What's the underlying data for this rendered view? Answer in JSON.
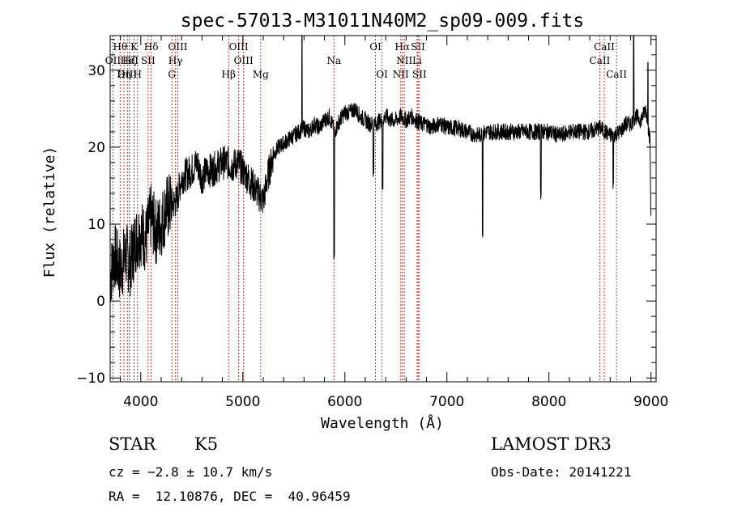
{
  "chart_data": {
    "type": "line",
    "title": "spec-57013-M31011N40M2_sp09-009.fits",
    "xlabel": "Wavelength (Å)",
    "ylabel": "Flux (relative)",
    "xlim": [
      3700,
      9050
    ],
    "ylim": [
      -10.5,
      34.5
    ],
    "xticks": [
      4000,
      5000,
      6000,
      7000,
      8000,
      9000
    ],
    "xtick_labels": [
      "4000",
      "5000",
      "6000",
      "7000",
      "8000",
      "9000"
    ],
    "yticks": [
      -10,
      0,
      10,
      20,
      30
    ],
    "ytick_labels": [
      "−10",
      "0",
      "10",
      "20",
      "30"
    ],
    "spectrum_anchor_points": [
      [
        3700,
        3
      ],
      [
        3740,
        6
      ],
      [
        3800,
        4
      ],
      [
        3850,
        6
      ],
      [
        3900,
        5
      ],
      [
        3950,
        8
      ],
      [
        4000,
        9
      ],
      [
        4050,
        8
      ],
      [
        4100,
        11
      ],
      [
        4150,
        9
      ],
      [
        4200,
        10
      ],
      [
        4250,
        12
      ],
      [
        4300,
        12.5
      ],
      [
        4350,
        13
      ],
      [
        4400,
        16
      ],
      [
        4450,
        16.5
      ],
      [
        4500,
        17
      ],
      [
        4550,
        18
      ],
      [
        4600,
        16
      ],
      [
        4650,
        17
      ],
      [
        4700,
        17
      ],
      [
        4750,
        17.5
      ],
      [
        4800,
        18
      ],
      [
        4850,
        18
      ],
      [
        4900,
        17.5
      ],
      [
        4950,
        18
      ],
      [
        5000,
        17
      ],
      [
        5050,
        16
      ],
      [
        5100,
        15
      ],
      [
        5150,
        14
      ],
      [
        5200,
        13
      ],
      [
        5250,
        16.5
      ],
      [
        5300,
        19
      ],
      [
        5350,
        20
      ],
      [
        5400,
        20.5
      ],
      [
        5450,
        21
      ],
      [
        5500,
        21.5
      ],
      [
        5550,
        22
      ],
      [
        5600,
        22.5
      ],
      [
        5650,
        22
      ],
      [
        5700,
        23
      ],
      [
        5750,
        22.5
      ],
      [
        5800,
        23.5
      ],
      [
        5850,
        24
      ],
      [
        5900,
        22
      ],
      [
        5950,
        23.5
      ],
      [
        6000,
        24.5
      ],
      [
        6050,
        24.5
      ],
      [
        6100,
        25
      ],
      [
        6150,
        24
      ],
      [
        6200,
        23.5
      ],
      [
        6250,
        23
      ],
      [
        6300,
        23
      ],
      [
        6350,
        23.5
      ],
      [
        6400,
        24
      ],
      [
        6450,
        23.5
      ],
      [
        6500,
        23.5
      ],
      [
        6550,
        24
      ],
      [
        6600,
        23.5
      ],
      [
        6650,
        24
      ],
      [
        6700,
        23.5
      ],
      [
        6750,
        23
      ],
      [
        6800,
        23
      ],
      [
        6850,
        22.5
      ],
      [
        6900,
        23
      ],
      [
        6950,
        23
      ],
      [
        7000,
        22.5
      ],
      [
        7100,
        22.5
      ],
      [
        7200,
        22
      ],
      [
        7300,
        21.5
      ],
      [
        7400,
        22
      ],
      [
        7500,
        22
      ],
      [
        7600,
        22
      ],
      [
        7700,
        22
      ],
      [
        7800,
        22
      ],
      [
        7900,
        22
      ],
      [
        8000,
        22
      ],
      [
        8100,
        21.5
      ],
      [
        8200,
        22
      ],
      [
        8300,
        22
      ],
      [
        8400,
        22
      ],
      [
        8500,
        22.5
      ],
      [
        8600,
        21.5
      ],
      [
        8700,
        22
      ],
      [
        8750,
        23
      ],
      [
        8800,
        23
      ],
      [
        8850,
        24
      ],
      [
        8900,
        23.5
      ],
      [
        8950,
        25
      ],
      [
        8990,
        21
      ],
      [
        9000,
        10
      ]
    ],
    "absorption_features": [
      [
        5895,
        5
      ],
      [
        6280,
        16
      ],
      [
        6370,
        14
      ],
      [
        7350,
        8
      ],
      [
        7920,
        13
      ],
      [
        8630,
        14
      ]
    ],
    "emission_features": [
      [
        5580,
        34.5
      ],
      [
        8830,
        34.5
      ],
      [
        8970,
        31
      ]
    ],
    "spectral_lines": [
      {
        "label": "Hθ",
        "wavelength": 3798,
        "row": 1
      },
      {
        "label": "K",
        "wavelength": 3934,
        "row": 1
      },
      {
        "label": "Hδ",
        "wavelength": 4102,
        "row": 1
      },
      {
        "label": "OIII",
        "wavelength": 4363,
        "row": 1
      },
      {
        "label": "OIII",
        "wavelength": 4959,
        "row": 1
      },
      {
        "label": "OI",
        "wavelength": 6300,
        "row": 1
      },
      {
        "label": "Hα",
        "wavelength": 6563,
        "row": 1
      },
      {
        "label": "SII",
        "wavelength": 6717,
        "row": 1
      },
      {
        "label": "CaII",
        "wavelength": 8542,
        "row": 1
      },
      {
        "label": "OII",
        "wavelength": 3727,
        "row": 2
      },
      {
        "label": "Hζ",
        "wavelength": 3889,
        "row": 2
      },
      {
        "label": "HeI",
        "wavelength": 3889,
        "row": 2
      },
      {
        "label": "SII",
        "wavelength": 4072,
        "row": 2
      },
      {
        "label": "Hγ",
        "wavelength": 4340,
        "row": 2
      },
      {
        "label": "OIII",
        "wavelength": 5007,
        "row": 2
      },
      {
        "label": "Na",
        "wavelength": 5893,
        "row": 2
      },
      {
        "label": "NII",
        "wavelength": 6583,
        "row": 2
      },
      {
        "label": "Li",
        "wavelength": 6708,
        "row": 2
      },
      {
        "label": "CaII",
        "wavelength": 8498,
        "row": 2
      },
      {
        "label": "OIII",
        "wavelength": 3869,
        "row": 3
      },
      {
        "label": "Hη",
        "wavelength": 3835,
        "row": 3
      },
      {
        "label": "H",
        "wavelength": 3968,
        "row": 3
      },
      {
        "label": "G",
        "wavelength": 4305,
        "row": 3
      },
      {
        "label": "Hβ",
        "wavelength": 4861,
        "row": 3
      },
      {
        "label": "Mg",
        "wavelength": 5175,
        "row": 3
      },
      {
        "label": "OI",
        "wavelength": 6364,
        "row": 3
      },
      {
        "label": "NII",
        "wavelength": 6548,
        "row": 3
      },
      {
        "label": "SII",
        "wavelength": 6731,
        "row": 3
      },
      {
        "label": "CaII",
        "wavelength": 8662,
        "row": 3
      }
    ]
  },
  "info": {
    "object_class": "STAR",
    "subclass": "K5",
    "survey": "LAMOST DR3",
    "redshift": "cz = −2.8 ± 10.7 km/s",
    "obs_date": "Obs-Date: 20141221",
    "coords": "RA =  12.10876, DEC =  40.96459"
  }
}
